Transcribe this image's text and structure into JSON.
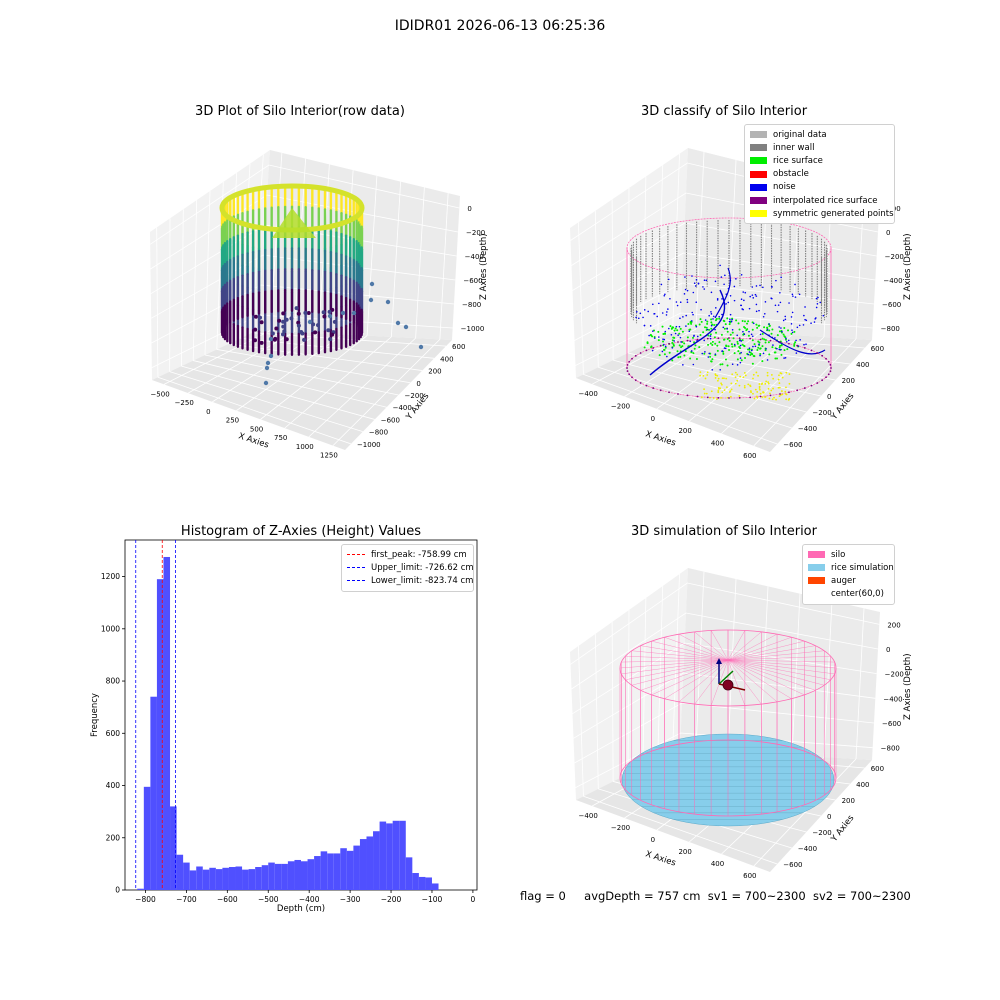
{
  "suptitle": "IDIDR01 2026-06-13 06:25:36",
  "panel1": {
    "title": "3D Plot of Silo Interior(row data)",
    "xlabel": "X Axies",
    "ylabel": "Y Axies",
    "zlabel": "Z Axies (Depth)",
    "xticks": [
      "−500",
      "−250",
      "0",
      "250",
      "500",
      "750",
      "1000",
      "1250"
    ],
    "yticks": [
      "600",
      "400",
      "200",
      "0",
      "−200",
      "−400",
      "−600",
      "−800",
      "−1000"
    ],
    "zticks": [
      "0",
      "−200",
      "−400",
      "−600",
      "−800",
      "−1000"
    ],
    "colormap": "viridis"
  },
  "panel2": {
    "title": "3D classify of Silo Interior",
    "xlabel": "X Axies",
    "ylabel": "Y Axies",
    "zlabel": "Z Axies (Depth)",
    "xticks": [
      "−400",
      "−200",
      "0",
      "200",
      "400",
      "600"
    ],
    "yticks": [
      "600",
      "400",
      "200",
      "0",
      "−200",
      "−400",
      "−600"
    ],
    "zticks": [
      "200",
      "0",
      "−200",
      "−400",
      "−600",
      "−800"
    ],
    "legend": [
      {
        "label": "original data",
        "color": "#b3b3b3"
      },
      {
        "label": "inner wall",
        "color": "#808080"
      },
      {
        "label": "rice surface",
        "color": "#00ee00"
      },
      {
        "label": "obstacle",
        "color": "#ff0000"
      },
      {
        "label": "noise",
        "color": "#0000ee"
      },
      {
        "label": "interpolated rice surface",
        "color": "#800080"
      },
      {
        "label": "symmetric generated points",
        "color": "#ffff00"
      }
    ]
  },
  "panel3": {
    "title": "Histogram of Z-Axies (Height) Values",
    "legend": [
      {
        "label": "first_peak: -758.99 cm",
        "color": "#ff0000"
      },
      {
        "label": "Upper_limit: -726.62 cm",
        "color": "#0000ff"
      },
      {
        "label": "Lower_limit: -823.74 cm",
        "color": "#0000ff"
      }
    ]
  },
  "panel4": {
    "title": "3D simulation of Silo Interior",
    "xlabel": "X Axies",
    "ylabel": "Y Axies",
    "zlabel": "Z Axies (Depth)",
    "xticks": [
      "−400",
      "−200",
      "0",
      "200",
      "400",
      "600"
    ],
    "yticks": [
      "600",
      "400",
      "200",
      "0",
      "−200",
      "−400",
      "−600"
    ],
    "zticks": [
      "200",
      "0",
      "−200",
      "−400",
      "−600",
      "−800"
    ],
    "legend": [
      {
        "label": "silo",
        "color": "#ff69b4"
      },
      {
        "label": "rice simulation",
        "color": "#87ceeb"
      },
      {
        "label": "auger",
        "color": "#ff4500"
      },
      {
        "label": "center(60,0)",
        "color": "#ffffff"
      }
    ]
  },
  "status": {
    "flag": "flag = 0",
    "avg": "avgDepth = 757 cm",
    "sv1": "sv1 = 700~2300",
    "sv2": "sv2 = 700~2300"
  },
  "chart_data": [
    {
      "type": "scatter",
      "title": "3D Plot of Silo Interior(row data)",
      "xlabel": "X Axies",
      "ylabel": "Y Axies",
      "zlabel": "Z Axies (Depth)",
      "xlim": [
        -500,
        1250
      ],
      "ylim": [
        -1000,
        600
      ],
      "zlim": [
        -1000,
        0
      ]
    },
    {
      "type": "scatter",
      "title": "3D classify of Silo Interior",
      "xlabel": "X Axies",
      "ylabel": "Y Axies",
      "zlabel": "Z Axies (Depth)",
      "xlim": [
        -400,
        600
      ],
      "ylim": [
        -600,
        600
      ],
      "zlim": [
        -800,
        200
      ],
      "series": [
        {
          "name": "original data"
        },
        {
          "name": "inner wall"
        },
        {
          "name": "rice surface"
        },
        {
          "name": "obstacle"
        },
        {
          "name": "noise"
        },
        {
          "name": "interpolated rice surface"
        },
        {
          "name": "symmetric generated points"
        }
      ]
    },
    {
      "type": "bar",
      "title": "Histogram of Z-Axies (Height) Values",
      "xlabel": "Depth (cm)",
      "ylabel": "Frequency",
      "xlim": [
        -850,
        10
      ],
      "ylim": [
        0,
        1340
      ],
      "xticks": [
        -800,
        -700,
        -600,
        -500,
        -400,
        -300,
        -200,
        -100,
        0
      ],
      "yticks": [
        0,
        200,
        400,
        600,
        800,
        1000,
        1200
      ],
      "bin_start": -820,
      "bin_width": 16,
      "values": [
        5,
        395,
        740,
        1190,
        1275,
        320,
        135,
        105,
        75,
        90,
        78,
        85,
        80,
        85,
        88,
        90,
        78,
        80,
        88,
        95,
        105,
        100,
        100,
        110,
        115,
        110,
        118,
        130,
        148,
        140,
        140,
        160,
        150,
        170,
        195,
        205,
        225,
        262,
        255,
        265,
        265,
        125,
        65,
        50,
        48,
        25
      ],
      "color": "#5050ff",
      "vlines": [
        {
          "name": "first_peak: -758.99 cm",
          "x": -758.99,
          "color": "#ff0000"
        },
        {
          "name": "Upper_limit: -726.62 cm",
          "x": -726.62,
          "color": "#0000ff"
        },
        {
          "name": "Lower_limit: -823.74 cm",
          "x": -823.74,
          "color": "#0000ff"
        }
      ]
    },
    {
      "type": "scatter",
      "title": "3D simulation of Silo Interior",
      "xlabel": "X Axies",
      "ylabel": "Y Axies",
      "zlabel": "Z Axies (Depth)",
      "xlim": [
        -400,
        600
      ],
      "ylim": [
        -600,
        600
      ],
      "zlim": [
        -800,
        200
      ],
      "series": [
        {
          "name": "silo"
        },
        {
          "name": "rice simulation"
        },
        {
          "name": "auger"
        },
        {
          "name": "center(60,0)"
        }
      ]
    }
  ]
}
